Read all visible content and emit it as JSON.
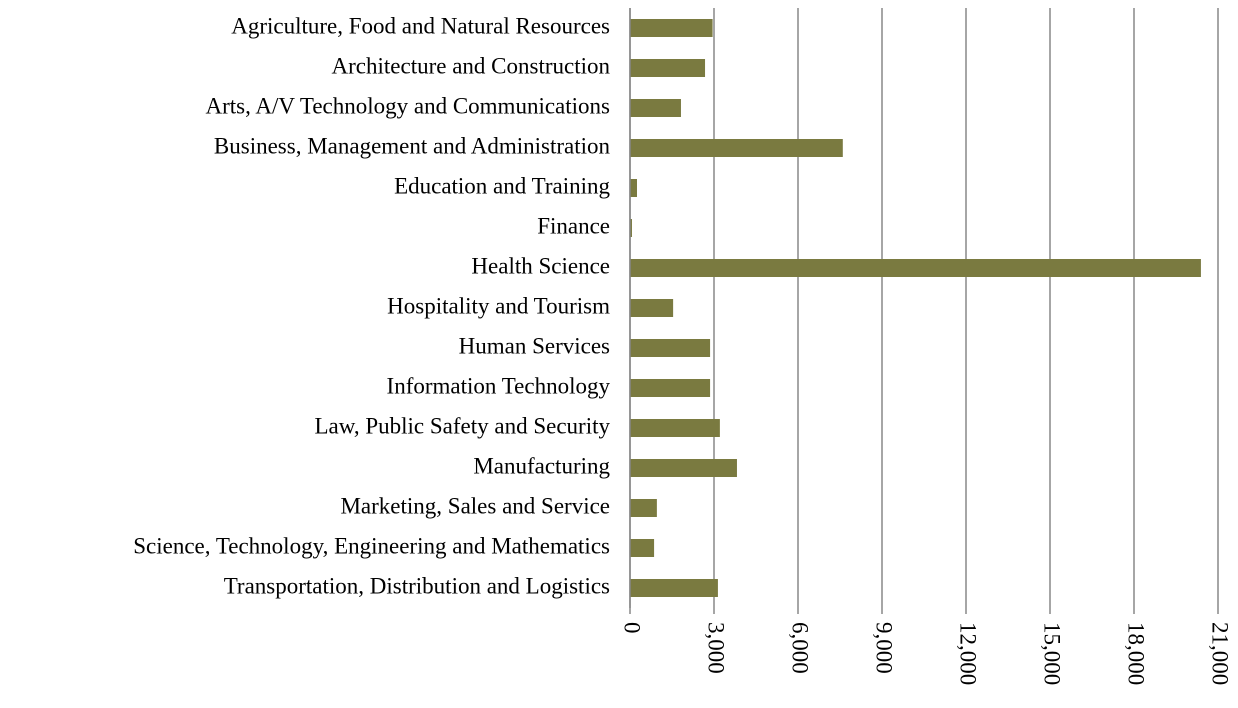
{
  "chart_data": {
    "type": "bar",
    "orientation": "horizontal",
    "categories": [
      "Agriculture, Food and Natural Resources",
      "Architecture and Construction",
      "Arts, A/V Technology and Communications",
      "Business, Management and Administration",
      "Education and Training",
      "Finance",
      "Health Science",
      "Hospitality and Tourism",
      "Human Services",
      "Information Technology",
      "Law, Public Safety and Security",
      "Manufacturing",
      "Marketing, Sales and Service",
      "Science, Technology, Engineering and Mathematics",
      "Transportation, Distribution and Logistics"
    ],
    "values": [
      2950,
      2680,
      1820,
      7600,
      250,
      70,
      20390,
      1540,
      2860,
      2860,
      3210,
      3820,
      960,
      860,
      3140
    ],
    "color": "#7a7a40",
    "xlim": [
      0,
      21000
    ],
    "xticks": [
      0,
      {
        "value": 3000,
        "label": "3,000"
      },
      {
        "value": 6000,
        "label": "6,000"
      },
      {
        "value": 9000,
        "label": "9,000"
      },
      {
        "value": 12000,
        "label": "12,000"
      },
      {
        "value": 15000,
        "label": "15,000"
      },
      {
        "value": 18000,
        "label": "18,000"
      },
      {
        "value": 21000,
        "label": "21,000"
      }
    ],
    "grid": true
  }
}
